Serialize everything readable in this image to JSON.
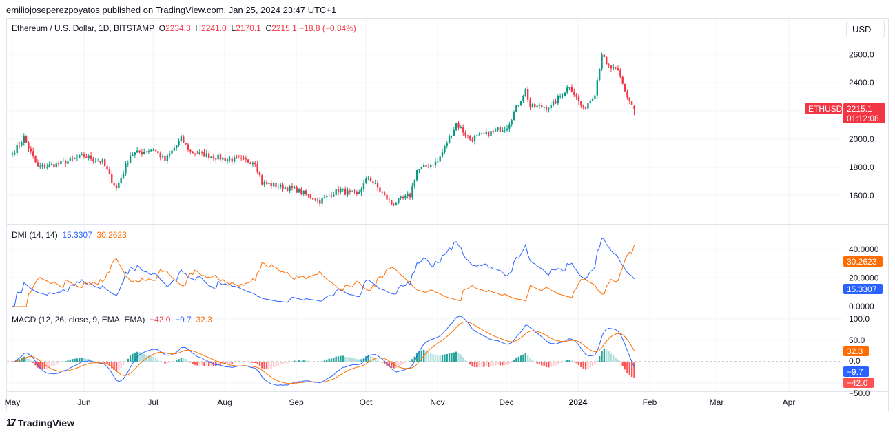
{
  "publisher_line": "emiliojoseperezpoyatos published on TradingView.com, Jan 25, 2024 23:47 UTC+1",
  "currency_button": "USD",
  "branding": "TradingView",
  "price_legend": {
    "symbol": "Ethereum / U.S. Dollar, 1D, BITSTAMP",
    "o_label": "O",
    "o": "2234.3",
    "h_label": "H",
    "h": "2241.0",
    "l_label": "L",
    "l": "2170.1",
    "c_label": "C",
    "c": "2215.1",
    "change": "−18.8 (−0.84%)"
  },
  "dmi_legend": {
    "name": "DMI (14, 14)",
    "plus_di": "15.3307",
    "minus_di": "30.2623"
  },
  "macd_legend": {
    "name": "MACD (12, 26, close, 9, EMA, EMA)",
    "hist": "−42.0",
    "macd": "−9.7",
    "signal": "32.3"
  },
  "price_tag": {
    "symbol": "ETHUSD",
    "price": "2215.1",
    "countdown": "01:12:08"
  },
  "colors": {
    "up": "#089981",
    "down": "#f23645",
    "blue": "#2962ff",
    "orange": "#ff6d00",
    "grid": "#f0f3fa"
  },
  "chart_data": [
    {
      "type": "candlestick",
      "title": "Ethereum / U.S. Dollar, 1D, BITSTAMP",
      "y_ticks": [
        "1600.0",
        "1800.0",
        "2000.0",
        "2400.0",
        "2600.0"
      ],
      "ylim": [
        1500,
        2720
      ],
      "x_ticks": [
        "May",
        "Jun",
        "Jul",
        "Aug",
        "Sep",
        "Oct",
        "Nov",
        "Dec",
        "2024",
        "Feb",
        "Mar",
        "Apr"
      ],
      "close_keypoints": [
        [
          "2023-05-01",
          1900
        ],
        [
          "2023-05-06",
          2010
        ],
        [
          "2023-05-12",
          1800
        ],
        [
          "2023-05-20",
          1820
        ],
        [
          "2023-06-01",
          1880
        ],
        [
          "2023-06-09",
          1840
        ],
        [
          "2023-06-12",
          1740
        ],
        [
          "2023-06-15",
          1650
        ],
        [
          "2023-06-21",
          1890
        ],
        [
          "2023-07-01",
          1930
        ],
        [
          "2023-07-06",
          1850
        ],
        [
          "2023-07-13",
          2000
        ],
        [
          "2023-07-17",
          1910
        ],
        [
          "2023-08-01",
          1860
        ],
        [
          "2023-08-14",
          1840
        ],
        [
          "2023-08-17",
          1690
        ],
        [
          "2023-09-01",
          1640
        ],
        [
          "2023-09-11",
          1560
        ],
        [
          "2023-09-19",
          1640
        ],
        [
          "2023-09-27",
          1600
        ],
        [
          "2023-10-02",
          1730
        ],
        [
          "2023-10-12",
          1540
        ],
        [
          "2023-10-20",
          1600
        ],
        [
          "2023-10-23",
          1780
        ],
        [
          "2023-11-01",
          1840
        ],
        [
          "2023-11-09",
          2110
        ],
        [
          "2023-11-15",
          2000
        ],
        [
          "2023-11-21",
          2030
        ],
        [
          "2023-12-01",
          2090
        ],
        [
          "2023-12-09",
          2350
        ],
        [
          "2023-12-11",
          2230
        ],
        [
          "2023-12-20",
          2230
        ],
        [
          "2023-12-28",
          2380
        ],
        [
          "2024-01-03",
          2210
        ],
        [
          "2024-01-08",
          2330
        ],
        [
          "2024-01-11",
          2610
        ],
        [
          "2024-01-13",
          2520
        ],
        [
          "2024-01-18",
          2480
        ],
        [
          "2024-01-22",
          2300
        ],
        [
          "2024-01-25",
          2215
        ]
      ]
    },
    {
      "type": "line",
      "name": "DMI (14, 14)",
      "y_ticks": [
        "0.0000",
        "20.0000",
        "40.0000"
      ],
      "last": {
        "plus_di": 15.3307,
        "minus_di": 30.2623
      }
    },
    {
      "type": "line+histogram",
      "name": "MACD (12, 26, close, 9, EMA, EMA)",
      "y_ticks": [
        "−50.0",
        "0.0",
        "50.0",
        "100.0"
      ],
      "last": {
        "histogram": -42.0,
        "macd": -9.7,
        "signal": 32.3
      }
    }
  ]
}
